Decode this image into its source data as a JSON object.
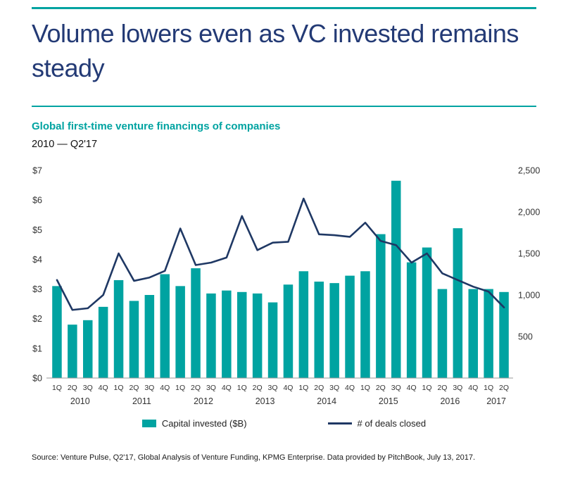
{
  "header": {
    "title_line1": "Volume lowers even as VC invested remains",
    "title_line2": "steady"
  },
  "chart_header": {
    "subtitle": "Global first-time venture financings of companies",
    "period": "2010 — Q2'17"
  },
  "legend": {
    "capital_label": "Capital invested ($B)",
    "deals_label": "# of deals closed"
  },
  "source": "Source: Venture Pulse, Q2'17, Global Analysis of Venture Funding, KPMG Enterprise. Data provided by PitchBook, July 13, 2017.",
  "colors": {
    "teal": "#00A3A1",
    "title_navy": "#233A75",
    "line_navy": "#1F3864",
    "axis_text": "#333333",
    "baseline": "#9a9a9a"
  },
  "chart_data": {
    "type": "bar",
    "subtype": "combo bar + line, dual axis",
    "title": "Global first-time venture financings of companies",
    "period": "2010 — Q2'17",
    "x_quarter_labels": [
      "1Q",
      "2Q",
      "3Q",
      "4Q",
      "1Q",
      "2Q",
      "3Q",
      "4Q",
      "1Q",
      "2Q",
      "3Q",
      "4Q",
      "1Q",
      "2Q",
      "3Q",
      "4Q",
      "1Q",
      "2Q",
      "3Q",
      "4Q",
      "1Q",
      "2Q",
      "3Q",
      "4Q",
      "1Q",
      "2Q",
      "3Q",
      "4Q",
      "1Q",
      "2Q"
    ],
    "year_groups": [
      {
        "label": "2010",
        "span": 4
      },
      {
        "label": "2011",
        "span": 4
      },
      {
        "label": "2012",
        "span": 4
      },
      {
        "label": "2013",
        "span": 4
      },
      {
        "label": "2014",
        "span": 4
      },
      {
        "label": "2015",
        "span": 4
      },
      {
        "label": "2016",
        "span": 4
      },
      {
        "label": "2017",
        "span": 2
      }
    ],
    "series": [
      {
        "name": "Capital invested ($B)",
        "type": "bar",
        "axis": "left",
        "values": [
          3.1,
          1.8,
          1.95,
          2.4,
          3.3,
          2.6,
          2.8,
          3.5,
          3.1,
          3.7,
          2.85,
          2.95,
          2.9,
          2.85,
          2.55,
          3.15,
          3.6,
          3.25,
          3.2,
          3.45,
          3.6,
          4.85,
          6.65,
          3.9,
          4.4,
          3.0,
          5.05,
          3.0,
          3.0,
          2.9
        ]
      },
      {
        "name": "# of deals closed",
        "type": "line",
        "axis": "right",
        "values": [
          1180,
          820,
          840,
          1000,
          1500,
          1170,
          1210,
          1290,
          1800,
          1360,
          1390,
          1450,
          1950,
          1540,
          1630,
          1640,
          2160,
          1730,
          1720,
          1700,
          1870,
          1650,
          1600,
          1390,
          1500,
          1260,
          1180,
          1100,
          1040,
          850
        ]
      }
    ],
    "left_axis": {
      "min": 0,
      "max": 7,
      "step": 1,
      "tick_values": [
        0,
        1,
        2,
        3,
        4,
        5,
        6,
        7
      ],
      "tick_labels": [
        "$0",
        "$1",
        "$2",
        "$3",
        "$4",
        "$5",
        "$6",
        "$7"
      ]
    },
    "right_axis": {
      "min": 0,
      "max": 2500,
      "step": 500,
      "tick_values": [
        500,
        1000,
        1500,
        2000,
        2500
      ],
      "tick_labels": [
        "500",
        "1,000",
        "1,500",
        "2,000",
        "2,500"
      ]
    },
    "grid": false,
    "legend_position": "bottom"
  }
}
